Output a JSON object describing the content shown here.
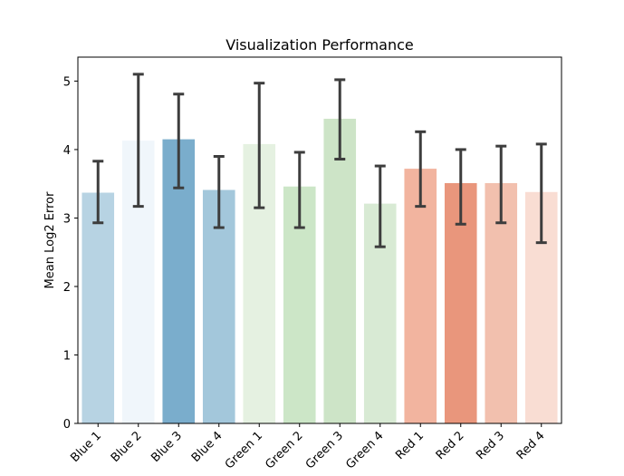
{
  "chart_data": {
    "type": "bar",
    "title": "Visualization Performance",
    "xlabel": "",
    "ylabel": "Mean Log2 Error",
    "ylim": [
      0,
      5.35
    ],
    "yticks": [
      "0",
      "1",
      "2",
      "3",
      "4",
      "5"
    ],
    "categories": [
      "Blue 1",
      "Blue 2",
      "Blue 3",
      "Blue 4",
      "Green 1",
      "Green 2",
      "Green 3",
      "Green 4",
      "Red 1",
      "Red 2",
      "Red 3",
      "Red 4"
    ],
    "values": [
      3.37,
      4.13,
      4.15,
      3.41,
      4.08,
      3.46,
      4.45,
      3.21,
      3.72,
      3.51,
      3.51,
      3.38
    ],
    "error_low": [
      2.93,
      3.17,
      3.44,
      2.86,
      3.15,
      2.86,
      3.86,
      2.58,
      3.17,
      2.91,
      2.93,
      2.64
    ],
    "error_high": [
      3.83,
      5.1,
      4.81,
      3.9,
      4.97,
      3.96,
      5.02,
      3.76,
      4.26,
      4.0,
      4.05,
      4.08
    ],
    "colors": [
      "#b7d3e3",
      "#f0f6fb",
      "#7aadcc",
      "#a3c7db",
      "#e5f1e1",
      "#cce6c7",
      "#cde4c7",
      "#d8ead4",
      "#f2b49f",
      "#e9967c",
      "#f2c0ae",
      "#f9ddd3"
    ],
    "grid": false,
    "legend": "none"
  }
}
